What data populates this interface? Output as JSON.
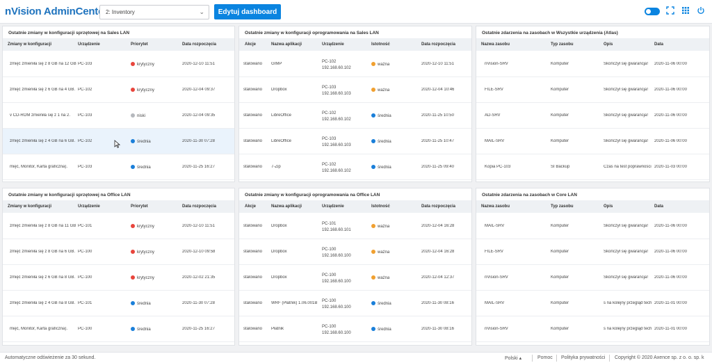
{
  "header": {
    "brand": "nVision AdminCenter",
    "dashboard_select": "2: Inventory",
    "edit_button": "Edytuj dashboard"
  },
  "panels": [
    {
      "title": "Ostatnie zmiany w konfiguracji sprzętowej na Sales LAN",
      "columns": [
        "Zmiany w konfiguracji",
        "Urządzenie",
        "Priorytet",
        "Data rozpoczęcia"
      ],
      "rows": [
        [
          "zmięć zmieniła się z 8 GB na 12 GB",
          "PC-103",
          "krytyczny",
          "2020-12-10 11:51"
        ],
        [
          "zmięć zmieniła się z 6 GB na 4 GB.",
          "PC-102",
          "krytyczny",
          "2020-12-04 09:37"
        ],
        [
          "v CD-ROM zmieniła się z 1 na 2.",
          "PC-103",
          "niski",
          "2020-12-04 09:35"
        ],
        [
          "zmięć zmieniła się z 4 GB na 6 GB.",
          "PC-102",
          "średnia",
          "2020-11-30 07:28"
        ],
        [
          "mięć, Monitor, Karta graficzna).",
          "PC-103",
          "średnia",
          "2020-11-25 16:27"
        ]
      ]
    },
    {
      "title": "Ostatnie zmiany w konfiguracji oprogramowania na Sales LAN",
      "columns": [
        "Akcje",
        "Nazwa aplikacji",
        "Urządzenie",
        "Istotność",
        "Data rozpoczęcia"
      ],
      "rows": [
        [
          "stalowano",
          "GIMP",
          "PC-102",
          "192.168.60.102",
          "ważna",
          "2020-12-10 11:51"
        ],
        [
          "stalowano",
          "Dropbox",
          "PC-103",
          "192.168.60.103",
          "ważna",
          "2020-12-04 10:46"
        ],
        [
          "stalowano",
          "LibreOffice",
          "PC-102",
          "192.168.60.102",
          "średnia",
          "2020-11-25 10:50"
        ],
        [
          "stalowano",
          "LibreOffice",
          "PC-103",
          "192.168.60.103",
          "średnia",
          "2020-11-25 10:47"
        ],
        [
          "stalowano",
          "7-Zip",
          "PC-102",
          "192.168.60.102",
          "średnia",
          "2020-11-25 09:40"
        ]
      ]
    },
    {
      "title": "Ostatnie zdarzenia na zasobach w Wszystkie urządzenia (Atlas)",
      "columns": [
        "Nazwa zasobu",
        "Typ zasobu",
        "Opis",
        "Data"
      ],
      "rows": [
        [
          "nVision-SRV",
          "Komputer",
          "Skończył się gwarancja!",
          "2020-11-06 00:00"
        ],
        [
          "FILE-SRV",
          "Komputer",
          "Skończył się gwarancja!",
          "2020-11-06 00:00"
        ],
        [
          "AD-SRV",
          "Komputer",
          "Skończył się gwarancja!",
          "2020-11-06 00:00"
        ],
        [
          "MAIL-SRV",
          "Komputer",
          "Skończył się gwarancja!",
          "2020-11-06 00:00"
        ],
        [
          "Kopia PC-103",
          "SI Backup",
          "Czas na test poprawności",
          "2020-11-03 00:00"
        ]
      ]
    },
    {
      "title": "Ostatnie zmiany w konfiguracji sprzętowej na Office LAN",
      "columns": [
        "Zmiany w konfiguracji",
        "Urządzenie",
        "Priorytet",
        "Data rozpoczęcia"
      ],
      "rows": [
        [
          "zmięć zmieniła się z 8 GB na 11 GB",
          "PC-101",
          "krytyczny",
          "2020-12-10 11:51"
        ],
        [
          "zmięć zmieniła się z 8 GB na 6 GB.",
          "PC-100",
          "krytyczny",
          "2020-12-10 09:58"
        ],
        [
          "zmięć zmieniła się z 6 GB na 8 GB.",
          "PC-100",
          "krytyczny",
          "2020-12-02 21:35"
        ],
        [
          "zmięć zmieniła się z 4 GB na 8 GB.",
          "PC-101",
          "średnia",
          "2020-11-30 07:28"
        ],
        [
          "mięć, Monitor, Karta graficzna).",
          "PC-100",
          "średnia",
          "2020-11-25 16:27"
        ]
      ]
    },
    {
      "title": "Ostatnie zmiany w konfiguracji oprogramowania na Office LAN",
      "columns": [
        "Akcje",
        "Nazwa aplikacji",
        "Urządzenie",
        "Istotność",
        "Data rozpoczęcia"
      ],
      "rows": [
        [
          "stalowano",
          "Dropbox",
          "PC-101",
          "192.168.60.101",
          "ważna",
          "2020-12-04 16:28"
        ],
        [
          "stalowano",
          "Dropbox",
          "PC-100",
          "192.168.60.100",
          "ważna",
          "2020-12-04 16:28"
        ],
        [
          "stalowano",
          "Dropbox",
          "PC-100",
          "192.168.60.100",
          "ważna",
          "2020-12-04 12:37"
        ],
        [
          "stalowano",
          "WRF (Płatnik) 1.06.001B",
          "PC-100",
          "192.168.60.100",
          "średnia",
          "2020-11-30 08:16"
        ],
        [
          "stalowano",
          "Płatnik",
          "PC-100",
          "192.168.60.100",
          "średnia",
          "2020-11-30 08:16"
        ]
      ]
    },
    {
      "title": "Ostatnie zdarzenia na zasobach w Core LAN",
      "columns": [
        "Nazwa zasobu",
        "Typ zasobu",
        "Opis",
        "Data"
      ],
      "rows": [
        [
          "MAIL-SRV",
          "Komputer",
          "Skończył się gwarancja!",
          "2020-11-06 00:00"
        ],
        [
          "FILE-SRV",
          "Komputer",
          "Skończył się gwarancja!",
          "2020-11-06 00:00"
        ],
        [
          "nVision-SRV",
          "Komputer",
          "Skończył się gwarancja!",
          "2020-11-06 00:00"
        ],
        [
          "MAIL-SRV",
          "Komputer",
          "s na kolejny przegląd tech",
          "2020-11-01 00:00"
        ],
        [
          "nVision-SRV",
          "Komputer",
          "s na kolejny przegląd tech",
          "2020-11-01 00:00"
        ]
      ]
    }
  ],
  "status_colors": {
    "krytyczny": "#e8453c",
    "ważna": "#f0a030",
    "niski": "#b5b8bd",
    "średnia": "#1a7fd9"
  },
  "footer": {
    "autorefresh": "Automatyczne odświeżenie za 30 sekund.",
    "language": "Polski",
    "help": "Pomoc",
    "privacy": "Polityka prywatności",
    "copyright": "Copyright © 2020  Axence sp. z o. o. sp. k"
  }
}
